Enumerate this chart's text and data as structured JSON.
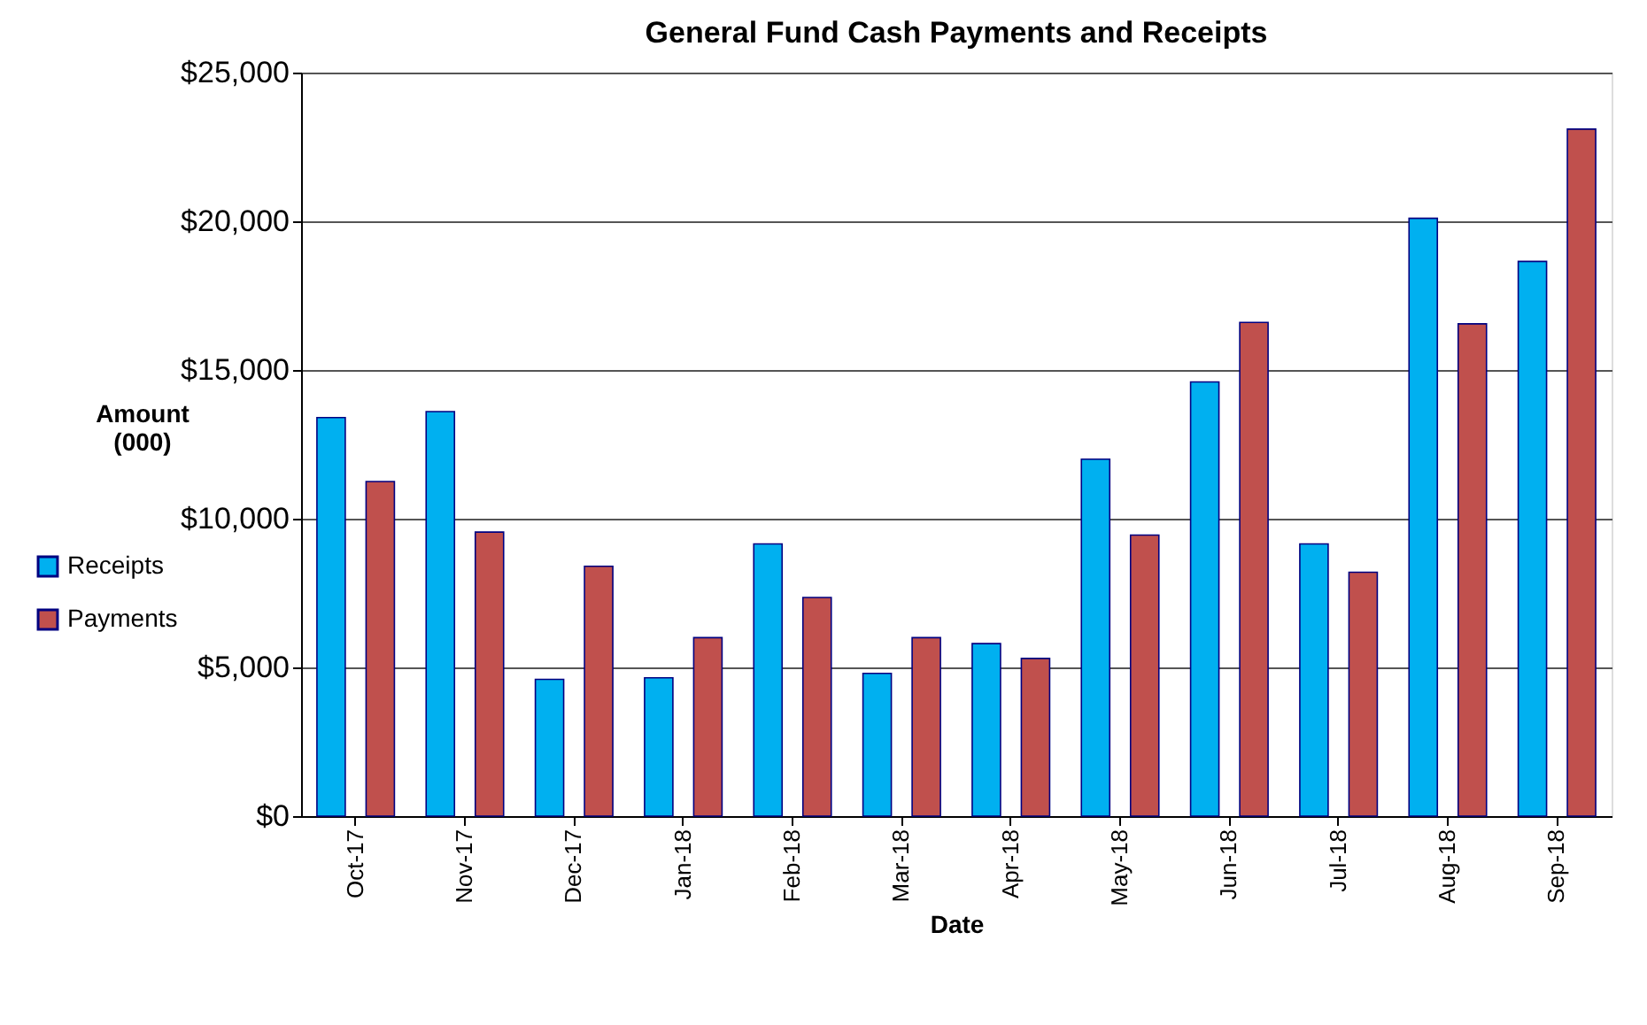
{
  "chart_data": {
    "type": "bar",
    "title": "General Fund Cash Payments and Receipts",
    "xlabel": "Date",
    "ylabel": "Amount\n(000)",
    "categories": [
      "Oct-17",
      "Nov-17",
      "Dec-17",
      "Jan-18",
      "Feb-18",
      "Mar-18",
      "Apr-18",
      "May-18",
      "Jun-18",
      "Jul-18",
      "Aug-18",
      "Sep-18"
    ],
    "series": [
      {
        "name": "Receipts",
        "color": "#00b0f0",
        "values": [
          13400,
          13600,
          4600,
          4650,
          9150,
          4800,
          5800,
          12000,
          14600,
          9150,
          20100,
          18650
        ]
      },
      {
        "name": "Payments",
        "color": "#c0504d",
        "values": [
          11250,
          9550,
          8400,
          6000,
          7350,
          6000,
          5300,
          9450,
          16600,
          8200,
          16550,
          23100
        ]
      }
    ],
    "ylim": [
      0,
      25000
    ],
    "yticks": [
      {
        "value": 0,
        "label": "$0"
      },
      {
        "value": 5000,
        "label": "$5,000"
      },
      {
        "value": 10000,
        "label": "$10,000"
      },
      {
        "value": 15000,
        "label": "$15,000"
      },
      {
        "value": 20000,
        "label": "$20,000"
      },
      {
        "value": 25000,
        "label": "$25,000"
      }
    ],
    "grid": "y",
    "legend": "left"
  }
}
